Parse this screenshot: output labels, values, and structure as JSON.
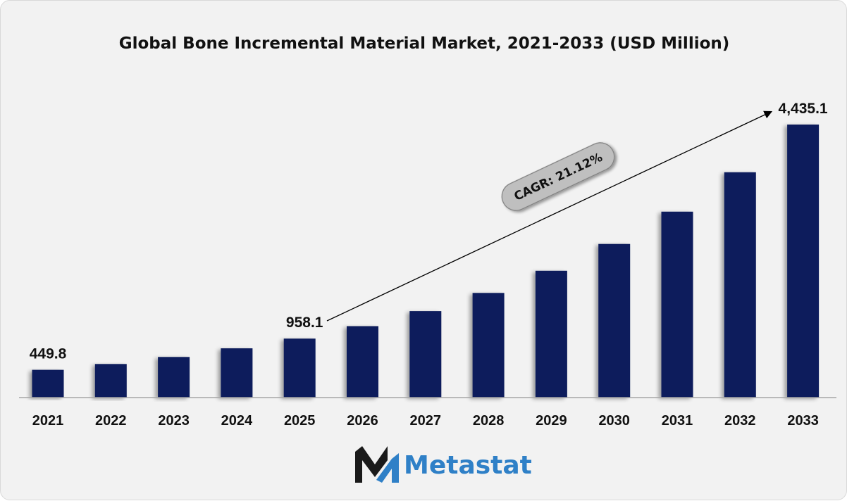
{
  "colors": {
    "bar": "#0c1f5c",
    "axis": "#a6a6a6",
    "cagr_fill": "#bfbfbf",
    "brand_dark": "#1a1a1a",
    "brand_blue": "#2f80c7"
  },
  "brand": {
    "name": "Metastat",
    "logo_icon": "metastat-m-logo-icon"
  },
  "annotation": {
    "cagr_label": "CAGR: 21.12%",
    "arrow_icon": "trend-arrow-icon"
  },
  "chart_data": {
    "type": "bar",
    "title": "Global Bone Incremental Material Market, 2021-2033 (USD Million)",
    "xlabel": "",
    "ylabel": "",
    "categories": [
      "2021",
      "2022",
      "2023",
      "2024",
      "2025",
      "2026",
      "2027",
      "2028",
      "2029",
      "2030",
      "2031",
      "2032",
      "2033"
    ],
    "values": [
      449.8,
      545,
      660,
      800,
      958.1,
      1160,
      1405,
      1700,
      2060,
      2495,
      3020,
      3660,
      4435.1
    ],
    "data_labels": [
      {
        "index": 0,
        "text": "449.8"
      },
      {
        "index": 4,
        "text": "958.1"
      },
      {
        "index": 12,
        "text": "4,435.1"
      }
    ],
    "ylim": [
      0,
      4435.1
    ],
    "grid": false,
    "legend": "none"
  }
}
